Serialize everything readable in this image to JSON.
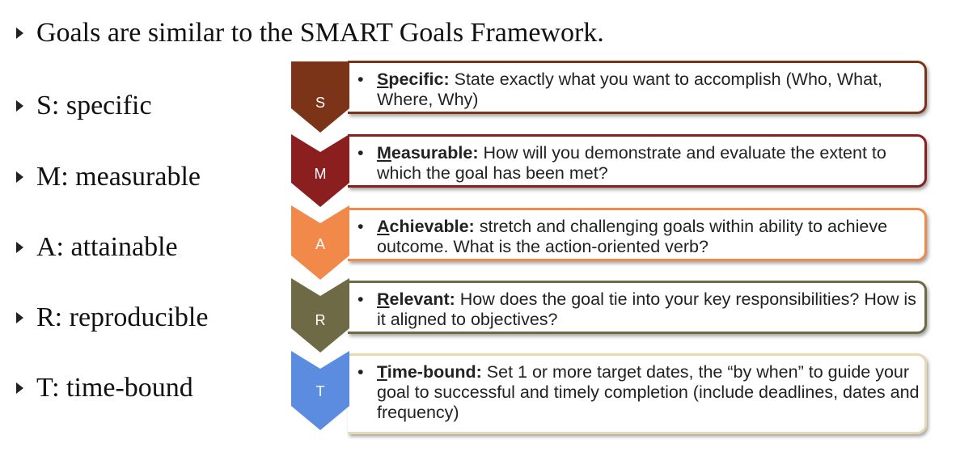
{
  "heading": "Goals are similar to the SMART Goals Framework.",
  "left_list": [
    {
      "text": "S:  specific"
    },
    {
      "text": "M:  measurable"
    },
    {
      "text": "A:  attainable"
    },
    {
      "text": "R:  reproducible"
    },
    {
      "text": "T:  time-bound"
    }
  ],
  "smart": [
    {
      "letter": "S",
      "color": "#7b3417",
      "border": "#7b3417",
      "first": "S",
      "rest": "pecific:",
      "desc": "State exactly what you want to accomplish (Who, What, Where, Why)"
    },
    {
      "letter": "M",
      "color": "#8b1e1e",
      "border": "#8b1e1e",
      "first": "M",
      "rest": "easurable:",
      "desc": "How will you demonstrate and evaluate the extent to which the goal has been met?"
    },
    {
      "letter": "A",
      "color": "#f0894a",
      "border": "#f0894a",
      "first": "A",
      "rest": "chievable:",
      "desc": "stretch and challenging goals within ability to achieve outcome. What is the action-oriented verb?"
    },
    {
      "letter": "R",
      "color": "#6e6a45",
      "border": "#6e6a45",
      "first": "R",
      "rest": "elevant:",
      "desc": "How does the goal tie into your key responsibilities? How is it aligned to objectives?"
    },
    {
      "letter": "T",
      "color": "#5b8ce0",
      "border": "#e8d9b5",
      "first": "T",
      "rest": "ime-bound:",
      "desc": "Set 1 or more target dates, the “by when” to guide your goal to successful and timely completion (include deadlines, dates and frequency)"
    }
  ]
}
